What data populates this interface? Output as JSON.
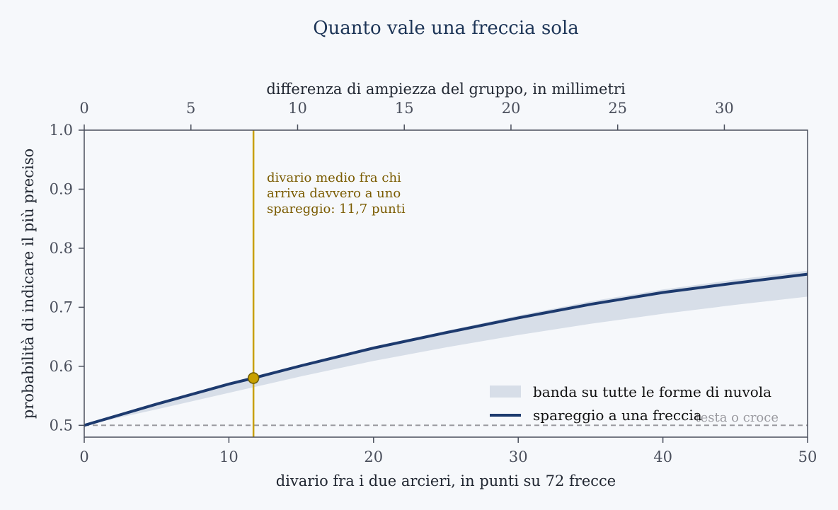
{
  "chart_data": {
    "type": "line",
    "title": "Quanto vale una freccia sola",
    "xlabel": "divario fra i due arcieri, in punti su 72 frecce",
    "x2label": "differenza di ampiezza del gruppo, in millimetri",
    "ylabel": "probabilità di indicare il più preciso",
    "xlim": [
      0,
      50
    ],
    "ylim": [
      0.48,
      1.0
    ],
    "x2lim": [
      0,
      33.9
    ],
    "xticks": [
      0,
      10,
      20,
      30,
      40,
      50
    ],
    "x2ticks": [
      0,
      5,
      10,
      15,
      20,
      25,
      30
    ],
    "yticks": [
      0.5,
      0.6,
      0.7,
      0.8,
      0.9,
      1.0
    ],
    "grid": false,
    "legend_position": "lower-right",
    "series": [
      {
        "name": "spareggio a una freccia",
        "color": "#1d3a6e",
        "x": [
          0,
          5,
          10,
          11.7,
          15,
          20,
          25,
          30,
          35,
          40,
          45,
          50
        ],
        "y": [
          0.5,
          0.536,
          0.57,
          0.58,
          0.601,
          0.631,
          0.657,
          0.682,
          0.705,
          0.725,
          0.741,
          0.756
        ]
      }
    ],
    "band": {
      "name": "banda su tutte le forme di nuvola",
      "color": "#d7dee8",
      "x": [
        0,
        5,
        10,
        15,
        20,
        25,
        30,
        35,
        40,
        45,
        50
      ],
      "lower": [
        0.5,
        0.527,
        0.555,
        0.583,
        0.609,
        0.632,
        0.653,
        0.672,
        0.689,
        0.704,
        0.718
      ],
      "upper": [
        0.5,
        0.537,
        0.572,
        0.603,
        0.633,
        0.66,
        0.686,
        0.71,
        0.73,
        0.747,
        0.762
      ]
    },
    "reference_line": {
      "y": 0.5,
      "label": "testa o croce",
      "color": "#9a9aa0"
    },
    "marker": {
      "x": 11.7,
      "y": 0.58,
      "color": "#c8a000"
    },
    "vline": {
      "x": 11.7,
      "color": "#c8a000",
      "annotation": [
        "divario medio fra chi",
        "arriva davvero a uno",
        "spareggio: 11,7 punti"
      ]
    }
  }
}
